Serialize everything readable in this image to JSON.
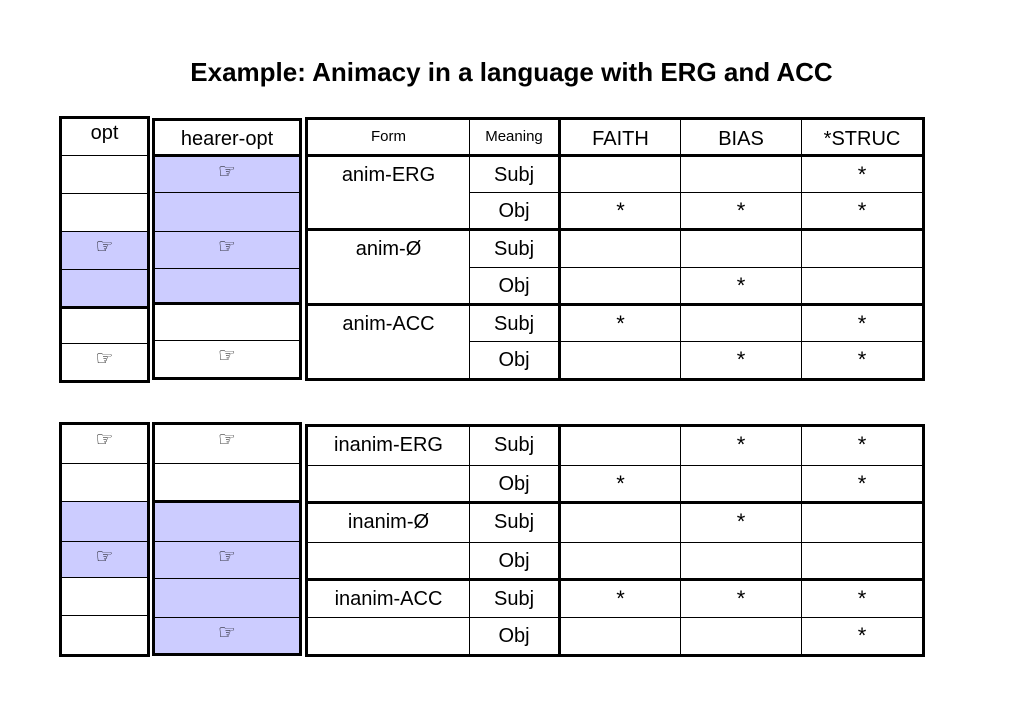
{
  "title": "Example: Animacy in a language with ERG and ACC",
  "hand_glyph": "☞",
  "star": "*",
  "headers": {
    "opt": "opt",
    "hearer_opt": "hearer-opt",
    "form": "Form",
    "meaning": "Meaning",
    "faith": "FAITH",
    "bias": "BIAS",
    "struc": "*STRUC"
  },
  "animate": {
    "opt": [
      {
        "hand": false,
        "hl": false
      },
      {
        "hand": false,
        "hl": false
      },
      {
        "hand": true,
        "hl": true
      },
      {
        "hand": false,
        "hl": true
      },
      {
        "hand": false,
        "hl": false
      },
      {
        "hand": true,
        "hl": false
      }
    ],
    "hearer_opt": [
      {
        "hand": true,
        "hl": true
      },
      {
        "hand": false,
        "hl": true
      },
      {
        "hand": true,
        "hl": true
      },
      {
        "hand": false,
        "hl": true
      },
      {
        "hand": false,
        "hl": false
      },
      {
        "hand": true,
        "hl": false
      }
    ],
    "forms": [
      "anim-ERG",
      "anim-Ø",
      "anim-ACC"
    ],
    "rows": [
      {
        "meaning": "Subj",
        "faith": "",
        "bias": "",
        "struc": "*"
      },
      {
        "meaning": "Obj",
        "faith": "*",
        "bias": "*",
        "struc": "*"
      },
      {
        "meaning": "Subj",
        "faith": "",
        "bias": "",
        "struc": ""
      },
      {
        "meaning": "Obj",
        "faith": "",
        "bias": "*",
        "struc": ""
      },
      {
        "meaning": "Subj",
        "faith": "*",
        "bias": "",
        "struc": "*"
      },
      {
        "meaning": "Obj",
        "faith": "",
        "bias": "*",
        "struc": "*"
      }
    ]
  },
  "inanimate": {
    "opt": [
      {
        "hand": true,
        "hl": false
      },
      {
        "hand": false,
        "hl": false
      },
      {
        "hand": false,
        "hl": true
      },
      {
        "hand": true,
        "hl": true
      },
      {
        "hand": false,
        "hl": false
      },
      {
        "hand": false,
        "hl": false
      }
    ],
    "hearer_opt": [
      {
        "hand": true,
        "hl": false
      },
      {
        "hand": false,
        "hl": false
      },
      {
        "hand": false,
        "hl": true
      },
      {
        "hand": true,
        "hl": true
      },
      {
        "hand": false,
        "hl": true
      },
      {
        "hand": true,
        "hl": true
      }
    ],
    "forms": [
      "inanim-ERG",
      "inanim-Ø",
      "inanim-ACC"
    ],
    "rows": [
      {
        "meaning": "Subj",
        "faith": "",
        "bias": "*",
        "struc": "*"
      },
      {
        "meaning": "Obj",
        "faith": "*",
        "bias": "",
        "struc": "*"
      },
      {
        "meaning": "Subj",
        "faith": "",
        "bias": "*",
        "struc": ""
      },
      {
        "meaning": "Obj",
        "faith": "",
        "bias": "",
        "struc": ""
      },
      {
        "meaning": "Subj",
        "faith": "*",
        "bias": "*",
        "struc": "*"
      },
      {
        "meaning": "Obj",
        "faith": "",
        "bias": "",
        "struc": "*"
      }
    ]
  }
}
